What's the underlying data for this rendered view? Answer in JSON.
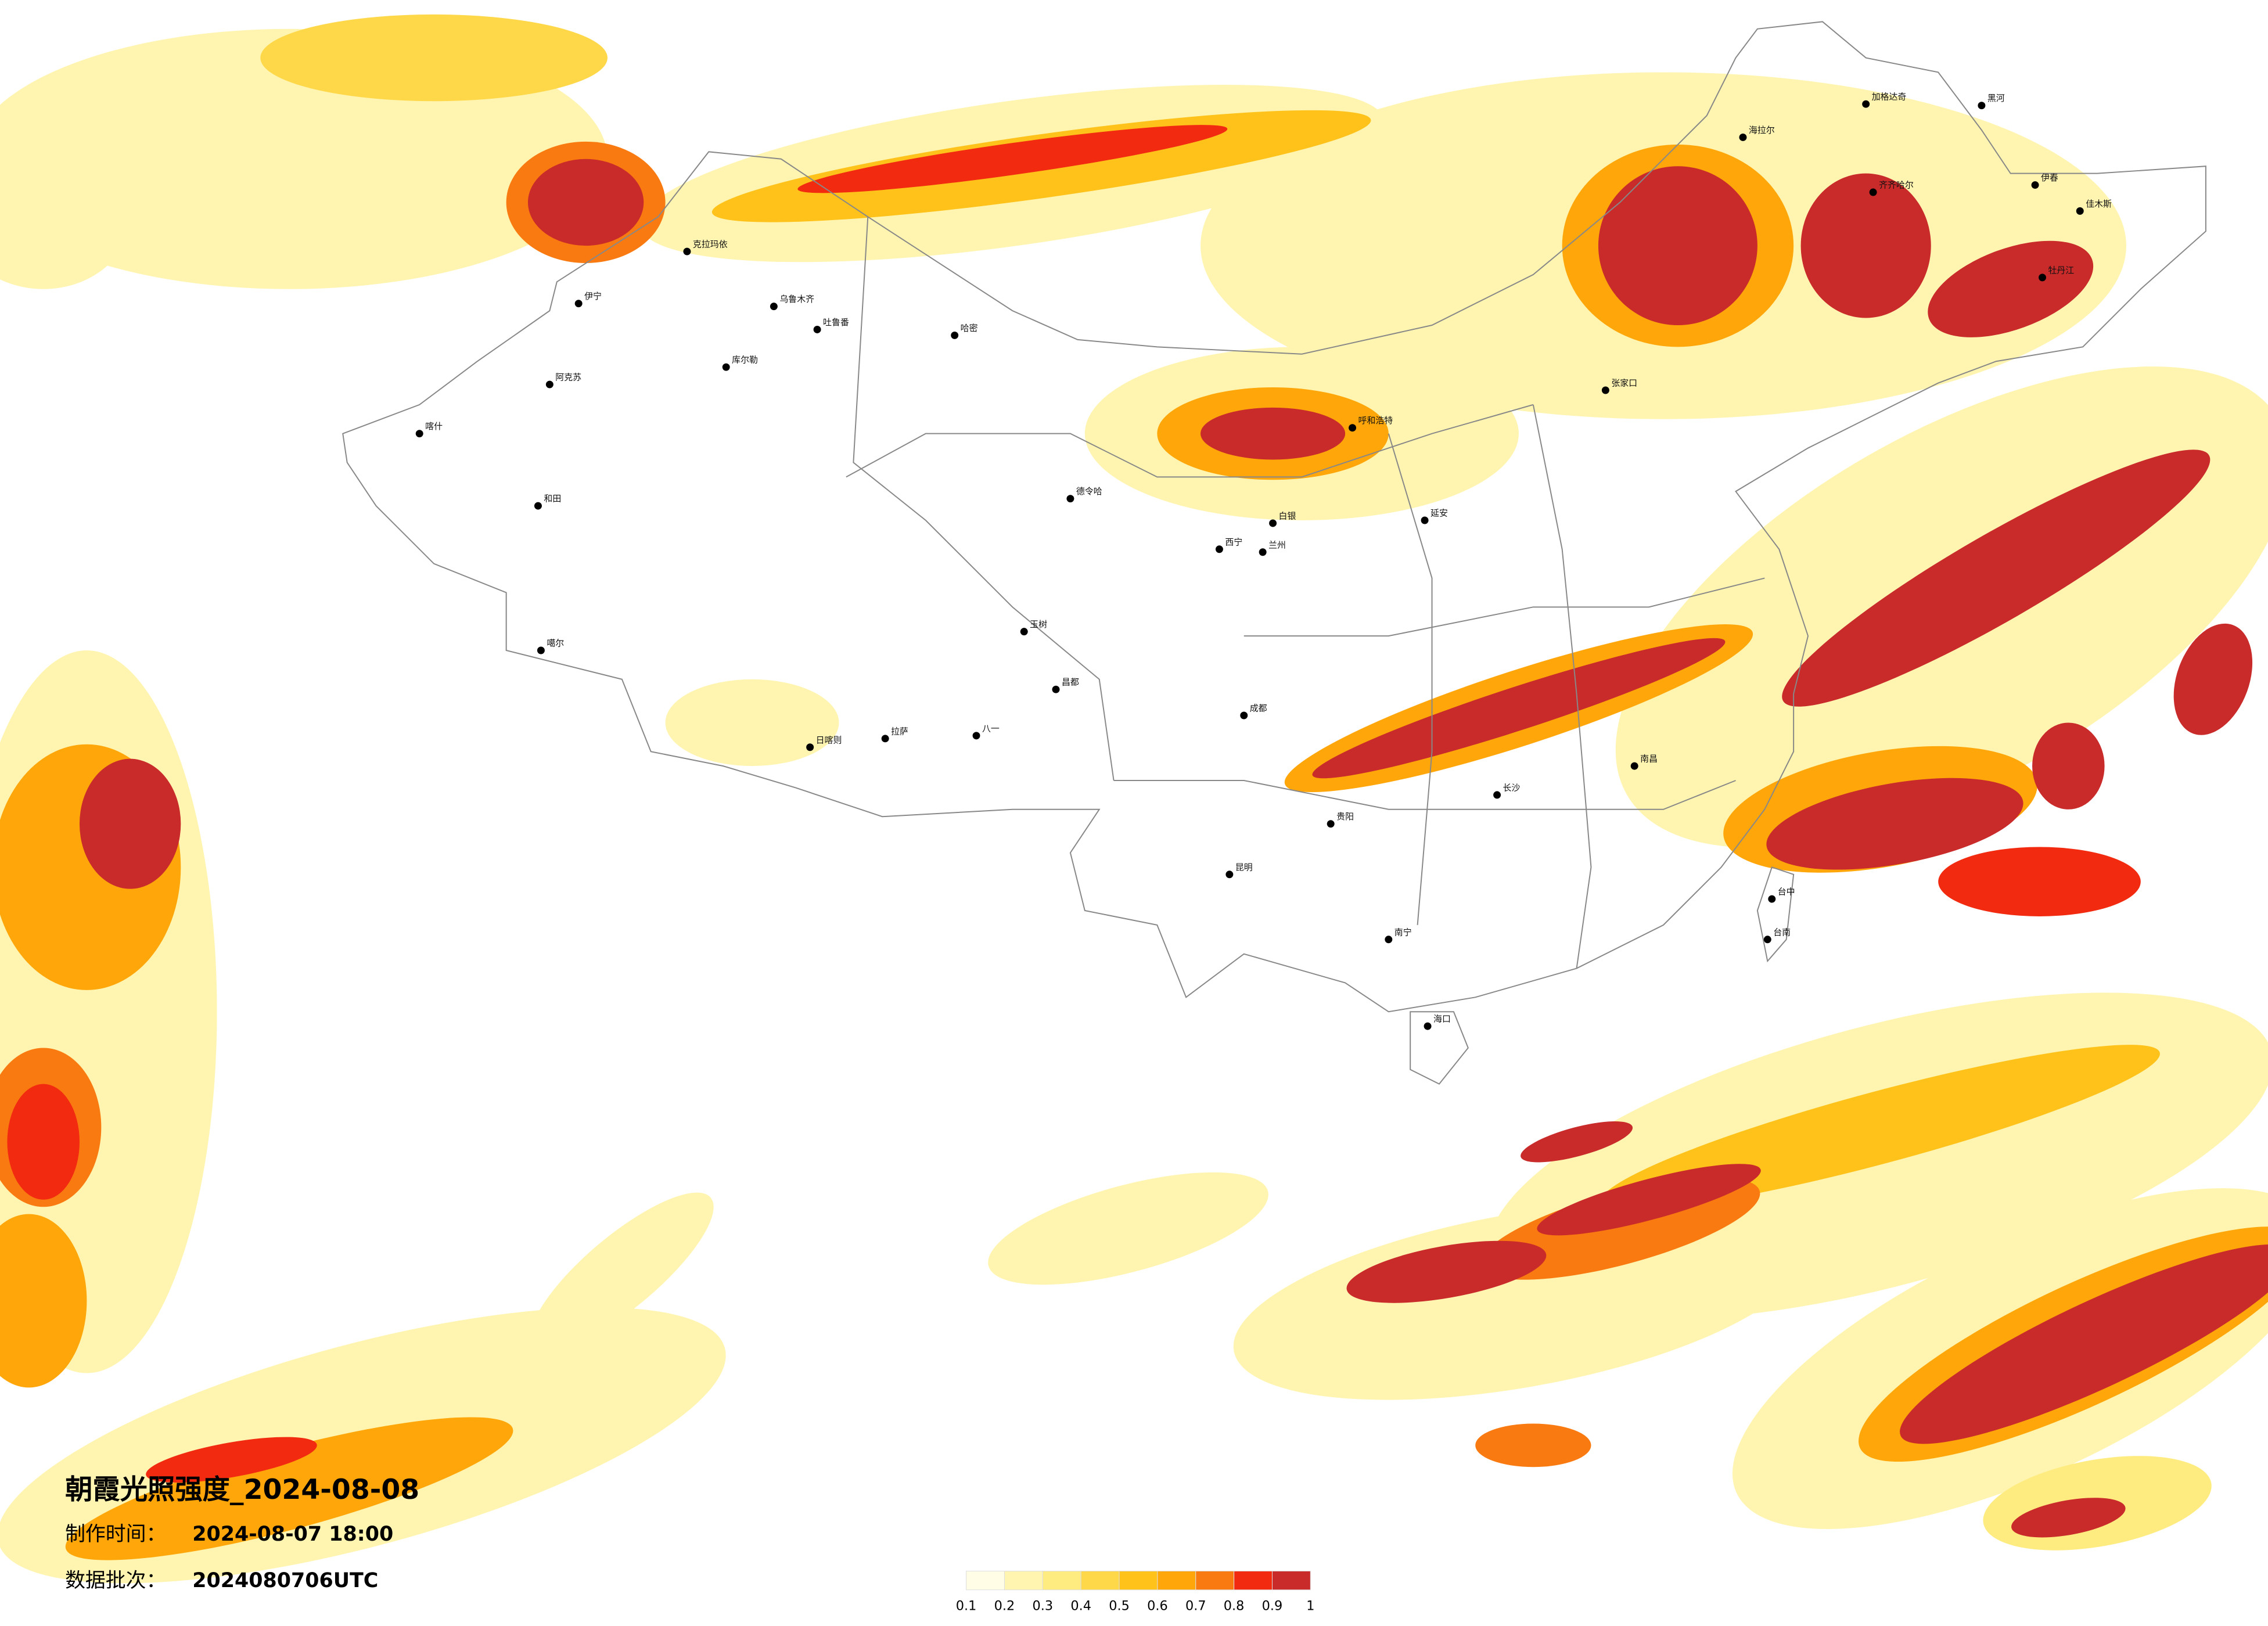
{
  "header": {
    "title": "朝霞光照强度_2024-08-08",
    "production_label": "制作时间：",
    "production_time": "2024-08-07 18:00",
    "batch_label": "数据批次：",
    "batch_value": "2024080706UTC"
  },
  "legend": {
    "ticks": [
      0.1,
      0.2,
      0.3,
      0.4,
      0.5,
      0.6,
      0.7,
      0.8,
      0.9,
      1
    ],
    "colors": [
      "#fffde6",
      "#fff5b0",
      "#ffec80",
      "#ffd84a",
      "#ffc21a",
      "#ffa60a",
      "#f97a10",
      "#f22a10",
      "#c92a2a"
    ]
  },
  "cities": [
    "克拉玛依",
    "伊宁",
    "乌鲁木齐",
    "吐鲁番",
    "哈密",
    "库尔勒",
    "阿克苏",
    "喀什",
    "和田",
    "噶尔",
    "日喀则",
    "拉萨",
    "八一",
    "昌都",
    "玉树",
    "德令哈",
    "西宁",
    "兰州",
    "白银",
    "呼和浩特",
    "张家口",
    "海拉尔",
    "加格达奇",
    "黑河",
    "齐齐哈尔",
    "伊春",
    "佳木斯",
    "牡丹江",
    "延安",
    "成都",
    "贵阳",
    "昆明",
    "南宁",
    "长沙",
    "南昌",
    "台中",
    "台南",
    "海口"
  ]
}
